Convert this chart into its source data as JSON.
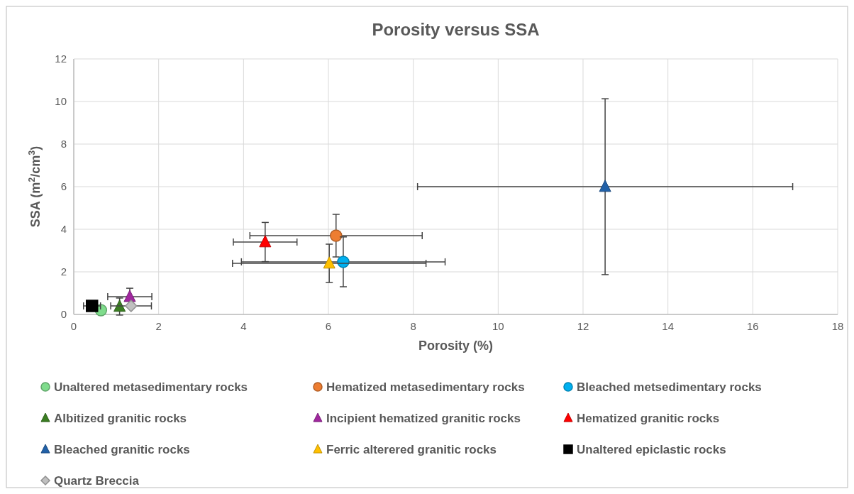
{
  "chart_data": {
    "type": "scatter",
    "title": "Porosity versus SSA",
    "xlabel": "Porosity (%)",
    "ylabel": "SSA (m$^{2}$/cm$^{3}$)",
    "xlim": [
      0,
      18
    ],
    "xticks": [
      0,
      2,
      4,
      6,
      8,
      10,
      12,
      14,
      16,
      18
    ],
    "ylim": [
      0,
      12
    ],
    "yticks": [
      0,
      2,
      4,
      6,
      8,
      10,
      12
    ],
    "grid": true,
    "legend": "bottom",
    "series": [
      {
        "name": "Unaltered metasedimentary rocks",
        "color": "#7fdc8c",
        "marker": "circle",
        "x": [
          0.64
        ],
        "values": [
          0.2
        ]
      },
      {
        "name": "Hematized metasedimentary rocks",
        "color": "#ed7d31",
        "marker": "circle",
        "x": [
          6.18
        ],
        "values": [
          3.7
        ],
        "errors": [
          1.0
        ],
        "xerrors": [
          2.03
        ]
      },
      {
        "name": "Bleached metsedimentary rocks",
        "color": "#00b0f0",
        "marker": "circle",
        "x": [
          6.35
        ],
        "values": [
          2.47
        ],
        "errors": [
          1.17
        ],
        "xerrors": [
          2.4
        ]
      },
      {
        "name": "Albitized granitic rocks",
        "color": "#3a7d22",
        "marker": "triangle",
        "x": [
          1.08
        ],
        "values": [
          0.37
        ],
        "errors": [
          0.4
        ]
      },
      {
        "name": "Incipient hematized granitic rocks",
        "color": "#a0279e",
        "marker": "triangle",
        "x": [
          1.32
        ],
        "values": [
          0.83
        ],
        "errors": [
          0.4
        ],
        "xerrors": [
          0.52
        ]
      },
      {
        "name": "Hematized granitic rocks",
        "color": "#ff0000",
        "marker": "triangle",
        "x": [
          4.51
        ],
        "values": [
          3.4
        ],
        "errors": [
          0.92
        ],
        "xerrors": [
          0.75
        ]
      },
      {
        "name": "Bleached granitic rocks",
        "color": "#2161a8",
        "marker": "triangle",
        "x": [
          12.52
        ],
        "values": [
          6.0
        ],
        "errors": [
          4.13
        ],
        "xerrors": [
          4.42
        ]
      },
      {
        "name": "Ferric alterered granitic rocks",
        "color": "#ffc000",
        "marker": "triangle",
        "x": [
          6.02
        ],
        "values": [
          2.4
        ],
        "errors": [
          0.9
        ],
        "xerrors": [
          2.28
        ]
      },
      {
        "name": "Unaltered epiclastic rocks",
        "color": "#000000",
        "marker": "square",
        "x": [
          0.43
        ],
        "values": [
          0.4
        ],
        "xerrors": [
          0.2
        ]
      },
      {
        "name": "Quartz Breccia",
        "color": "#c0c0c0",
        "marker": "diamond",
        "x": [
          1.35
        ],
        "values": [
          0.4
        ],
        "xerrors": [
          0.48
        ]
      }
    ]
  }
}
